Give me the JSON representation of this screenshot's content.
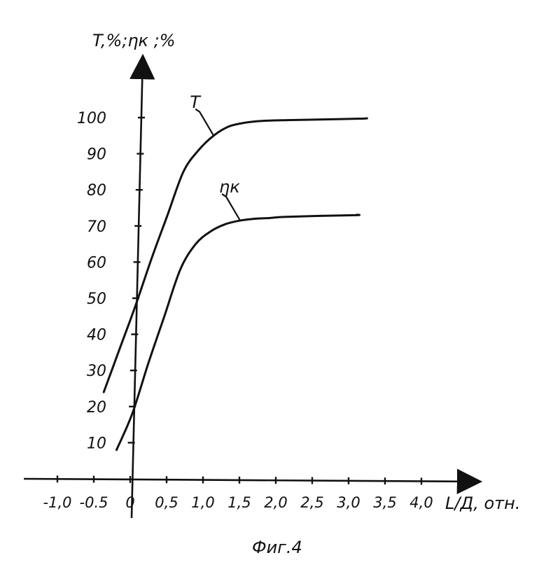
{
  "chart_data": {
    "type": "line",
    "ylabel": "T,%;ηк ;%",
    "xlabel": "L/Д, отн.",
    "caption": "Фиг.4",
    "xlim": [
      -1.25,
      4.3
    ],
    "ylim": [
      0,
      110
    ],
    "x_ticks": [
      -1.0,
      -0.5,
      0,
      0.5,
      1.0,
      1.5,
      2.0,
      2.5,
      3.0,
      3.5,
      4.0
    ],
    "x_tick_labels": [
      "-1,0",
      "-0.5",
      "0",
      "0,5",
      "1,0",
      "1,5",
      "2,0",
      "2,5",
      "3,0",
      "3,5",
      "4,0"
    ],
    "y_ticks": [
      10,
      20,
      30,
      40,
      50,
      60,
      70,
      80,
      90,
      100
    ],
    "y_tick_labels": [
      "10",
      "20",
      "30",
      "40",
      "50",
      "60",
      "70",
      "80",
      "90",
      "100"
    ],
    "grid": false,
    "series": [
      {
        "name": "T",
        "x": [
          -0.4,
          -0.2,
          0.0,
          0.2,
          0.4,
          0.6,
          0.8,
          1.0,
          1.2,
          1.4,
          1.6,
          1.8,
          2.0,
          2.5,
          3.0,
          3.1
        ],
        "values": [
          24,
          36,
          48,
          61,
          73,
          85,
          91,
          95,
          97.5,
          98.5,
          99,
          99.2,
          99.3,
          99.5,
          99.7,
          99.8
        ]
      },
      {
        "name": "ηк",
        "x": [
          -0.2,
          0.0,
          0.2,
          0.4,
          0.6,
          0.8,
          1.0,
          1.2,
          1.4,
          1.6,
          1.8,
          2.0,
          2.5,
          3.0,
          3.0
        ],
        "values": [
          8,
          18,
          32,
          45,
          58,
          65,
          68.5,
          70.5,
          71.5,
          72,
          72.2,
          72.5,
          72.8,
          73,
          73.1
        ]
      }
    ]
  }
}
